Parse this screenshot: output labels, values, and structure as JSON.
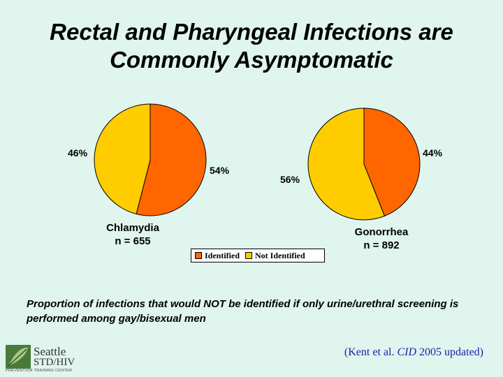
{
  "title": {
    "line1": "Rectal and Pharyngeal Infections are",
    "line2": "Commonly Asymptomatic"
  },
  "colors": {
    "identified": "#ff6600",
    "not_identified": "#ffcc00"
  },
  "chart_data": [
    {
      "type": "pie",
      "name": "Chlamydia",
      "label_line1": "Chlamydia",
      "label_line2": "n = 655",
      "categories": [
        "Identified",
        "Not Identified"
      ],
      "values": [
        54,
        46
      ],
      "value_labels": [
        "54%",
        "46%"
      ]
    },
    {
      "type": "pie",
      "name": "Gonorrhea",
      "label_line1": "Gonorrhea",
      "label_line2": "n = 892",
      "categories": [
        "Identified",
        "Not Identified"
      ],
      "values": [
        44,
        56
      ],
      "value_labels": [
        "44%",
        "56%"
      ]
    }
  ],
  "legend": {
    "identified": "Identified",
    "not_identified": "Not Identified"
  },
  "caption": "Proportion of infections that would NOT be identified if only urine/urethral screening is performed among gay/bisexual men",
  "citation": {
    "prefix": "(Kent et al. ",
    "journal": "CID",
    "suffix": " 2005 updated)"
  },
  "logo": {
    "line1": "Seattle",
    "line2": "STD/HIV",
    "line3": "PREVENTION TRAINING CENTER"
  }
}
